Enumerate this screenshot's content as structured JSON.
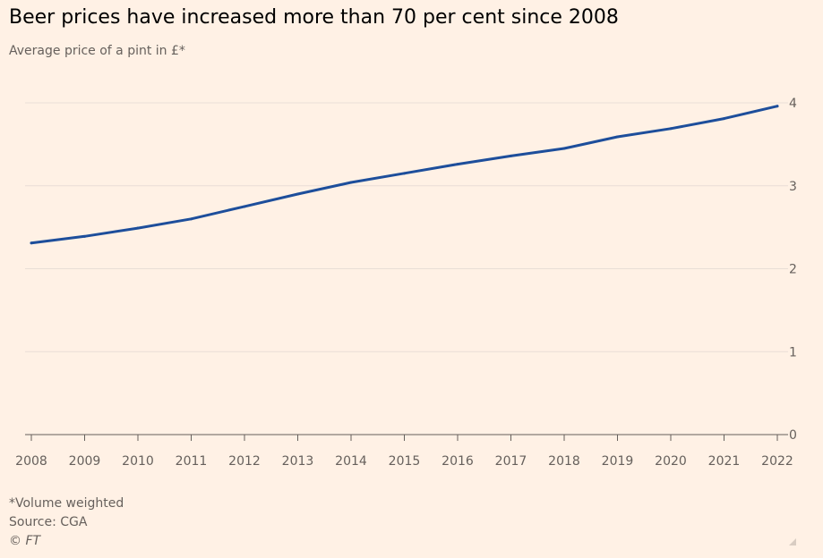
{
  "header": {
    "title": "Beer prices have increased more than 70 per cent since 2008",
    "subtitle": "Average price of a pint in £*"
  },
  "footer": {
    "note": "*Volume weighted",
    "source": "Source: CGA",
    "credit": "© FT"
  },
  "colors": {
    "background": "#FFF1E5",
    "line": "#1D4E9B",
    "grid": "#E9DED6",
    "axis": "#66605C"
  },
  "chart_data": {
    "type": "line",
    "title": "Beer prices have increased more than 70 per cent since 2008",
    "subtitle": "Average price of a pint in £*",
    "x": [
      2008,
      2009,
      2010,
      2011,
      2012,
      2013,
      2014,
      2015,
      2016,
      2017,
      2018,
      2019,
      2020,
      2021,
      2022
    ],
    "series": [
      {
        "values": [
          2.31,
          2.39,
          2.49,
          2.6,
          2.75,
          2.9,
          3.04,
          3.15,
          3.26,
          3.36,
          3.45,
          3.59,
          3.69,
          3.81,
          3.96
        ]
      }
    ],
    "ylim": [
      0,
      4
    ],
    "yticks": [
      0,
      1,
      2,
      3,
      4
    ],
    "xlabel": "",
    "ylabel": "",
    "y_axis_position": "right",
    "grid": true,
    "legend": "none"
  }
}
